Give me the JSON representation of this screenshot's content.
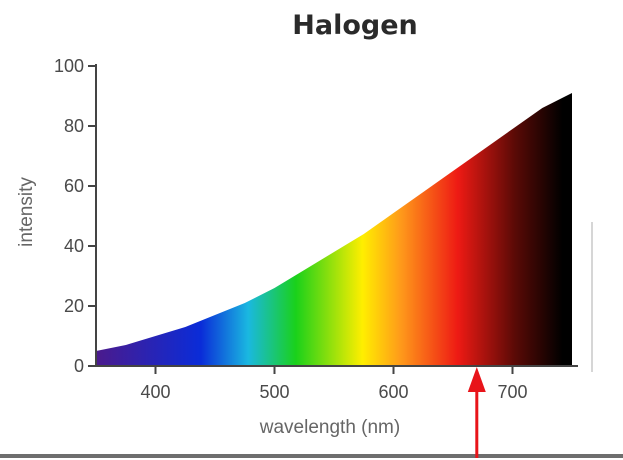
{
  "chart_data": {
    "type": "area",
    "title": "Halogen",
    "xlabel": "wavelength (nm)",
    "ylabel": "intensity",
    "xlim": [
      350,
      750
    ],
    "ylim": [
      0,
      100
    ],
    "x_ticks": [
      400,
      500,
      600,
      700
    ],
    "y_ticks": [
      0,
      20,
      40,
      60,
      80,
      100
    ],
    "grid": false,
    "fill": "visible-spectrum-gradient",
    "series": [
      {
        "x": [
          350,
          375,
          400,
          425,
          450,
          475,
          500,
          525,
          550,
          575,
          600,
          625,
          650,
          675,
          700,
          725,
          740,
          750
        ],
        "y": [
          5,
          7,
          10,
          13,
          17,
          21,
          26,
          32,
          38,
          44,
          51,
          58,
          65,
          72,
          79,
          86,
          89,
          91
        ]
      }
    ],
    "annotations": [
      {
        "type": "arrow",
        "color": "#e8141a",
        "x": 670,
        "pointing": "up"
      }
    ]
  },
  "colors": {
    "violet": "#4b1a8c",
    "blue": "#0a2cd8",
    "cyan": "#1ab8e0",
    "green": "#1ad11a",
    "yellow": "#ffee00",
    "orange": "#ff9a1a",
    "red": "#ee1a14",
    "dark_red": "#5a0a06",
    "black": "#000000",
    "arrow": "#e8141a"
  }
}
